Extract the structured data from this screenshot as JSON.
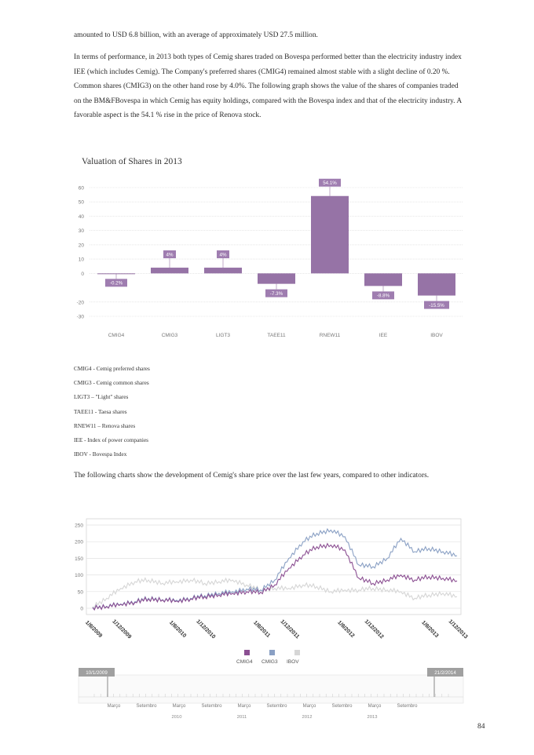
{
  "text": {
    "p1": "amounted to USD 6.8 billion, with an average of approximately USD 27.5 million.",
    "p2": "In terms of performance, in 2013 both types of Cemig shares traded on Bovespa performed better than the electricity industry index IEE (which includes Cemig). The Company's preferred shares (CMIG4) remained almost stable with a slight decline of 0.20 %. Common shares (CMIG3) on the other hand rose by 4.0%. The following graph shows the value of the shares of companies traded on the BM&FBovespa in which Cemig has equity holdings, compared with the Bovespa index and that of the electricity industry. A favorable aspect is the 54.1 % rise in the price of Renova stock.",
    "p3": "The following charts show the development of Cemig's share price over the last few years, compared to other indicators.",
    "page_number": "84"
  },
  "legend_list": [
    "CMIG4 - Cemig preferred shares",
    "CMIG3 - Cemig common shares",
    "LIGT3 – \"Light\" shares",
    "TAEE11 - Taesa shares",
    "RNEW11 – Renova shares",
    "IEE - Index of power companies",
    "IBOV - Bovespa Index"
  ],
  "colors": {
    "bar": "#9673a6",
    "cmig4": "#8b4f92",
    "cmig3": "#8aa0c4",
    "ibov": "#d6d6d6",
    "label_bg": "#9f7db0",
    "tick_text": "#777777"
  },
  "chart_data": [
    {
      "type": "bar",
      "title": "Valuation of Shares in 2013",
      "categories": [
        "CMIG4",
        "CMIG3",
        "LIGT3",
        "TAEE11",
        "RNEW11",
        "IEE",
        "IBOV"
      ],
      "values": [
        -0.2,
        4,
        4,
        -7.3,
        54.1,
        -8.8,
        -15.5
      ],
      "data_labels": [
        "-0.2%",
        "4%",
        "4%",
        "-7.3%",
        "54.1%",
        "-8.8%",
        "-15.5%"
      ],
      "yticks": [
        "60",
        "50",
        "40",
        "30",
        "20",
        "10",
        "0",
        "-20",
        "-30"
      ],
      "ylim": [
        -30,
        60
      ],
      "grid": true
    },
    {
      "type": "line",
      "title": "",
      "series": [
        {
          "name": "CMIG4",
          "color": "#8b4f92",
          "x": [
            "1/8/2009",
            "1/10/2009",
            "1/12/2009",
            "1/2/2010",
            "1/4/2010",
            "1/6/2010",
            "1/8/2010",
            "1/10/2010",
            "1/12/2010",
            "1/2/2011",
            "1/4/2011",
            "1/6/2011",
            "1/8/2011",
            "1/10/2011",
            "1/12/2011",
            "1/2/2012",
            "1/4/2012",
            "1/6/2012",
            "1/8/2012",
            "1/10/2012",
            "1/12/2012",
            "1/2/2013",
            "1/4/2013",
            "1/6/2013",
            "1/8/2013",
            "1/10/2013",
            "1/12/2013"
          ],
          "values": [
            2,
            5,
            12,
            18,
            28,
            25,
            22,
            28,
            35,
            40,
            45,
            50,
            48,
            70,
            120,
            160,
            185,
            190,
            175,
            90,
            75,
            85,
            100,
            85,
            95,
            90,
            82
          ]
        },
        {
          "name": "CMIG3",
          "color": "#8aa0c4",
          "x": [
            "1/8/2009",
            "1/10/2009",
            "1/12/2009",
            "1/2/2010",
            "1/4/2010",
            "1/6/2010",
            "1/8/2010",
            "1/10/2010",
            "1/12/2010",
            "1/2/2011",
            "1/4/2011",
            "1/6/2011",
            "1/8/2011",
            "1/10/2011",
            "1/12/2011",
            "1/2/2012",
            "1/4/2012",
            "1/6/2012",
            "1/8/2012",
            "1/10/2012",
            "1/12/2012",
            "1/2/2013",
            "1/4/2013",
            "1/6/2013",
            "1/8/2013",
            "1/10/2013",
            "1/12/2013"
          ],
          "values": [
            3,
            6,
            13,
            20,
            30,
            26,
            24,
            30,
            38,
            45,
            50,
            58,
            55,
            85,
            150,
            200,
            225,
            235,
            215,
            130,
            125,
            150,
            210,
            170,
            180,
            170,
            158
          ]
        },
        {
          "name": "IBOV",
          "color": "#d6d6d6",
          "x": [
            "1/8/2009",
            "1/10/2009",
            "1/12/2009",
            "1/2/2010",
            "1/4/2010",
            "1/6/2010",
            "1/8/2010",
            "1/10/2010",
            "1/12/2010",
            "1/2/2011",
            "1/4/2011",
            "1/6/2011",
            "1/8/2011",
            "1/10/2011",
            "1/12/2011",
            "1/2/2012",
            "1/4/2012",
            "1/6/2012",
            "1/8/2012",
            "1/10/2012",
            "1/12/2012",
            "1/2/2013",
            "1/4/2013",
            "1/6/2013",
            "1/8/2013",
            "1/10/2013",
            "1/12/2013"
          ],
          "values": [
            5,
            30,
            60,
            80,
            85,
            75,
            80,
            85,
            75,
            80,
            85,
            70,
            55,
            60,
            60,
            70,
            65,
            50,
            55,
            55,
            60,
            55,
            50,
            30,
            40,
            45,
            35
          ]
        }
      ],
      "x_tick_labels": [
        "1/8/2009",
        "1/12/2009",
        "1/8/2010",
        "1/12/2010",
        "1/8/2011",
        "1/12/2011",
        "1/8/2012",
        "1/12/2012",
        "1/8/2013",
        "1/12/2013"
      ],
      "yticks": [
        "250",
        "200",
        "150",
        "100",
        "50",
        "0"
      ],
      "ylim": [
        0,
        250
      ],
      "legend": [
        "CMIG4",
        "CMIG3",
        "IBOV"
      ],
      "legend_position": "bottom",
      "grid": true
    }
  ],
  "range_selector": {
    "start": "10/1/2009",
    "end": "21/2/2014",
    "months": [
      "Março",
      "Setembro",
      "Março",
      "Setembro",
      "Março",
      "Setembro",
      "Março",
      "Setembro",
      "Março",
      "Setembro"
    ],
    "years": [
      "2010",
      "2011",
      "2012",
      "2013"
    ]
  }
}
